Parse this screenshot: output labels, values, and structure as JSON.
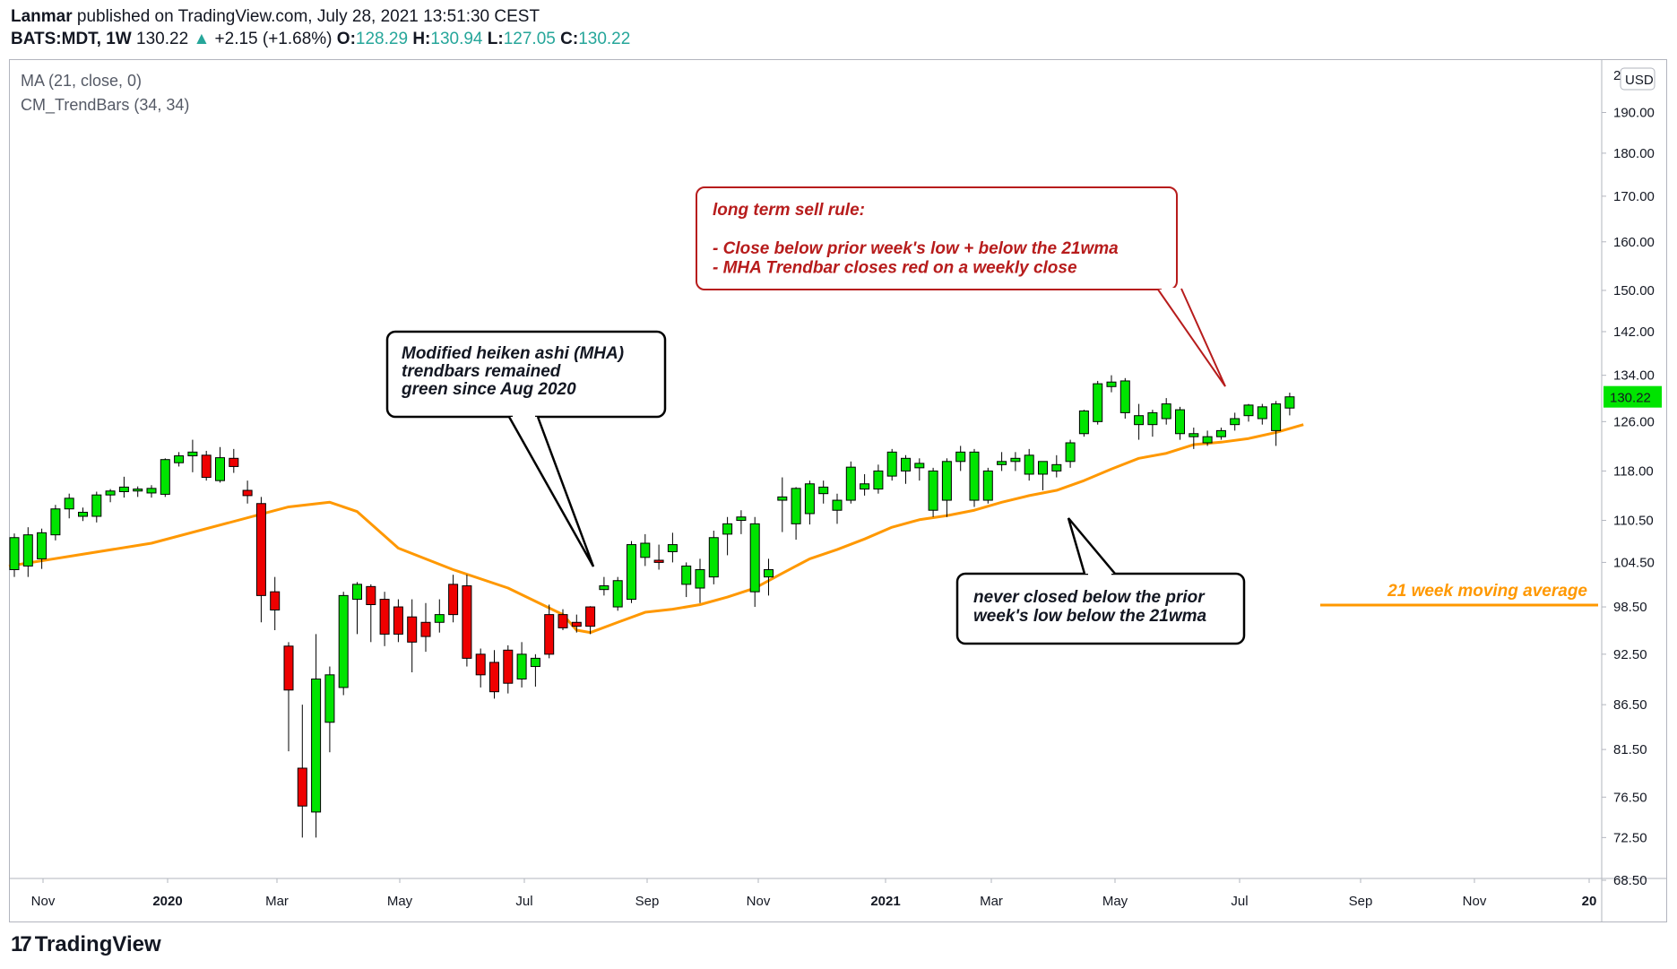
{
  "header": {
    "author": "Lanmar",
    "published": " published on TradingView.com, July 28, 2021 13:51:30 CEST",
    "symbol": "BATS:MDT, 1W",
    "last": "130.22",
    "change": "+2.15 (+1.68%)",
    "o_label": "O:",
    "o_val": "128.29",
    "h_label": "H:",
    "h_val": "130.94",
    "l_label": "L:",
    "l_val": "127.05",
    "c_label": "C:",
    "c_val": "130.22"
  },
  "legend": [
    "MA (21, close, 0)",
    "CM_TrendBars (34, 34)"
  ],
  "footer": {
    "brand": "TradingView",
    "mark": "17"
  },
  "colors": {
    "up": "#00e400",
    "down": "#ee0000",
    "ma": "#ff9800",
    "sell_text": "#b71c1c",
    "price_tag": "#00e400"
  },
  "chart_data": {
    "type": "candlestick",
    "symbol": "BATS:MDT",
    "interval": "1W",
    "currency": "USD",
    "price_axis": {
      "scale": "log",
      "ticks": [
        68.5,
        72.5,
        76.5,
        81.5,
        86.5,
        92.5,
        98.5,
        104.5,
        110.5,
        118.0,
        126.0,
        134.0,
        142.0,
        150.0,
        160.0,
        170.0,
        180.0,
        190.0
      ],
      "top_label": "2",
      "last_price": "130.22"
    },
    "time_axis": {
      "labels": [
        {
          "text": "Nov",
          "year": false
        },
        {
          "text": "2020",
          "year": true
        },
        {
          "text": "Mar",
          "year": false
        },
        {
          "text": "May",
          "year": false
        },
        {
          "text": "Jul",
          "year": false
        },
        {
          "text": "Sep",
          "year": false
        },
        {
          "text": "Nov",
          "year": false
        },
        {
          "text": "2021",
          "year": true
        },
        {
          "text": "Mar",
          "year": false
        },
        {
          "text": "May",
          "year": false
        },
        {
          "text": "Jul",
          "year": false
        },
        {
          "text": "Sep",
          "year": false
        },
        {
          "text": "Nov",
          "year": false
        },
        {
          "text": "20",
          "year": true
        }
      ]
    },
    "candles": [
      {
        "o": 103.5,
        "h": 108.6,
        "l": 102.5,
        "c": 108.0,
        "col": "up"
      },
      {
        "o": 104.0,
        "h": 109.5,
        "l": 102.5,
        "c": 108.4,
        "col": "up"
      },
      {
        "o": 105.0,
        "h": 109.3,
        "l": 103.6,
        "c": 108.7,
        "col": "up"
      },
      {
        "o": 108.4,
        "h": 112.8,
        "l": 107.6,
        "c": 112.2,
        "col": "up"
      },
      {
        "o": 112.2,
        "h": 114.5,
        "l": 110.8,
        "c": 113.8,
        "col": "up"
      },
      {
        "o": 111.1,
        "h": 112.4,
        "l": 110.4,
        "c": 111.7,
        "col": "up"
      },
      {
        "o": 111.1,
        "h": 114.8,
        "l": 110.2,
        "c": 114.3,
        "col": "up"
      },
      {
        "o": 114.3,
        "h": 115.2,
        "l": 113.2,
        "c": 114.9,
        "col": "up"
      },
      {
        "o": 114.8,
        "h": 117.1,
        "l": 113.9,
        "c": 115.5,
        "col": "up"
      },
      {
        "o": 114.9,
        "h": 115.6,
        "l": 114.0,
        "c": 115.2,
        "col": "up"
      },
      {
        "o": 114.6,
        "h": 115.8,
        "l": 113.9,
        "c": 115.3,
        "col": "up"
      },
      {
        "o": 114.4,
        "h": 120.0,
        "l": 114.0,
        "c": 119.8,
        "col": "up"
      },
      {
        "o": 119.3,
        "h": 121.0,
        "l": 118.7,
        "c": 120.4,
        "col": "up"
      },
      {
        "o": 120.4,
        "h": 123.0,
        "l": 117.8,
        "c": 121.0,
        "col": "up"
      },
      {
        "o": 120.5,
        "h": 121.2,
        "l": 116.5,
        "c": 117.0,
        "col": "down"
      },
      {
        "o": 116.5,
        "h": 121.8,
        "l": 116.2,
        "c": 120.1,
        "col": "up"
      },
      {
        "o": 120.0,
        "h": 121.5,
        "l": 117.7,
        "c": 118.7,
        "col": "down"
      },
      {
        "o": 115.0,
        "h": 116.5,
        "l": 113.0,
        "c": 114.2,
        "col": "down"
      },
      {
        "o": 113.0,
        "h": 114.0,
        "l": 96.5,
        "c": 100.0,
        "col": "down"
      },
      {
        "o": 100.5,
        "h": 102.5,
        "l": 95.5,
        "c": 98.1,
        "col": "down"
      },
      {
        "o": 93.5,
        "h": 94.0,
        "l": 81.3,
        "c": 88.2,
        "col": "down"
      },
      {
        "o": 79.5,
        "h": 86.5,
        "l": 72.5,
        "c": 75.6,
        "col": "down"
      },
      {
        "o": 75.0,
        "h": 95.0,
        "l": 72.5,
        "c": 89.5,
        "col": "up"
      },
      {
        "o": 84.5,
        "h": 91.0,
        "l": 81.2,
        "c": 90.0,
        "col": "up"
      },
      {
        "o": 88.5,
        "h": 100.5,
        "l": 87.6,
        "c": 100.0,
        "col": "up"
      },
      {
        "o": 99.5,
        "h": 101.8,
        "l": 95.0,
        "c": 101.5,
        "col": "up"
      },
      {
        "o": 101.2,
        "h": 101.5,
        "l": 94.0,
        "c": 98.8,
        "col": "down"
      },
      {
        "o": 99.5,
        "h": 100.5,
        "l": 93.5,
        "c": 95.0,
        "col": "down"
      },
      {
        "o": 98.5,
        "h": 99.5,
        "l": 94.0,
        "c": 95.0,
        "col": "down"
      },
      {
        "o": 97.2,
        "h": 99.5,
        "l": 90.3,
        "c": 94.0,
        "col": "down"
      },
      {
        "o": 96.5,
        "h": 99.0,
        "l": 92.8,
        "c": 94.7,
        "col": "down"
      },
      {
        "o": 97.5,
        "h": 99.5,
        "l": 95.2,
        "c": 96.5,
        "col": "up"
      },
      {
        "o": 101.5,
        "h": 102.8,
        "l": 96.5,
        "c": 97.5,
        "col": "down"
      },
      {
        "o": 101.3,
        "h": 102.8,
        "l": 91.0,
        "c": 92.0,
        "col": "down"
      },
      {
        "o": 92.5,
        "h": 93.2,
        "l": 88.5,
        "c": 90.0,
        "col": "down"
      },
      {
        "o": 91.5,
        "h": 93.0,
        "l": 87.2,
        "c": 88.0,
        "col": "down"
      },
      {
        "o": 93.0,
        "h": 93.6,
        "l": 87.8,
        "c": 89.0,
        "col": "down"
      },
      {
        "o": 92.5,
        "h": 94.0,
        "l": 88.5,
        "c": 89.5,
        "col": "up"
      },
      {
        "o": 91.0,
        "h": 92.5,
        "l": 88.6,
        "c": 92.0,
        "col": "up"
      },
      {
        "o": 97.5,
        "h": 98.8,
        "l": 92.0,
        "c": 92.5,
        "col": "down"
      },
      {
        "o": 97.5,
        "h": 98.2,
        "l": 95.5,
        "c": 95.8,
        "col": "down"
      },
      {
        "o": 96.5,
        "h": 97.5,
        "l": 95.2,
        "c": 96.0,
        "col": "down"
      },
      {
        "o": 98.5,
        "h": 98.6,
        "l": 95.0,
        "c": 96.0,
        "col": "down"
      },
      {
        "o": 100.8,
        "h": 102.5,
        "l": 100.0,
        "c": 101.3,
        "col": "up"
      },
      {
        "o": 98.5,
        "h": 102.5,
        "l": 98.0,
        "c": 102.0,
        "col": "up"
      },
      {
        "o": 99.5,
        "h": 107.5,
        "l": 99.0,
        "c": 107.0,
        "col": "up"
      },
      {
        "o": 105.2,
        "h": 108.5,
        "l": 104.0,
        "c": 107.2,
        "col": "up"
      },
      {
        "o": 104.5,
        "h": 107.0,
        "l": 103.5,
        "c": 104.8,
        "col": "down"
      },
      {
        "o": 106.0,
        "h": 108.7,
        "l": 104.5,
        "c": 107.0,
        "col": "up"
      },
      {
        "o": 101.5,
        "h": 104.5,
        "l": 99.8,
        "c": 104.0,
        "col": "up"
      },
      {
        "o": 101.0,
        "h": 105.0,
        "l": 99.0,
        "c": 103.5,
        "col": "up"
      },
      {
        "o": 102.5,
        "h": 109.0,
        "l": 101.5,
        "c": 108.0,
        "col": "up"
      },
      {
        "o": 108.5,
        "h": 111.0,
        "l": 105.5,
        "c": 110.0,
        "col": "up"
      },
      {
        "o": 110.5,
        "h": 112.0,
        "l": 108.5,
        "c": 111.0,
        "col": "up"
      },
      {
        "o": 100.5,
        "h": 111.0,
        "l": 98.5,
        "c": 110.0,
        "col": "up"
      },
      {
        "o": 102.5,
        "h": 105.0,
        "l": 100.0,
        "c": 103.5,
        "col": "up"
      },
      {
        "o": 113.5,
        "h": 117.0,
        "l": 108.8,
        "c": 114.0,
        "col": "up"
      },
      {
        "o": 110.0,
        "h": 115.5,
        "l": 107.7,
        "c": 115.3,
        "col": "up"
      },
      {
        "o": 111.5,
        "h": 116.5,
        "l": 109.9,
        "c": 116.0,
        "col": "up"
      },
      {
        "o": 114.5,
        "h": 116.5,
        "l": 113.0,
        "c": 115.5,
        "col": "up"
      },
      {
        "o": 112.0,
        "h": 114.5,
        "l": 110.0,
        "c": 113.5,
        "col": "up"
      },
      {
        "o": 113.5,
        "h": 119.5,
        "l": 113.0,
        "c": 118.6,
        "col": "up"
      },
      {
        "o": 115.2,
        "h": 117.5,
        "l": 114.2,
        "c": 116.0,
        "col": "up"
      },
      {
        "o": 115.2,
        "h": 119.0,
        "l": 114.5,
        "c": 118.0,
        "col": "up"
      },
      {
        "o": 117.2,
        "h": 121.5,
        "l": 116.5,
        "c": 121.0,
        "col": "up"
      },
      {
        "o": 118.0,
        "h": 120.5,
        "l": 116.0,
        "c": 120.0,
        "col": "up"
      },
      {
        "o": 118.5,
        "h": 120.0,
        "l": 116.5,
        "c": 119.2,
        "col": "up"
      },
      {
        "o": 112.0,
        "h": 118.5,
        "l": 111.0,
        "c": 118.0,
        "col": "up"
      },
      {
        "o": 113.5,
        "h": 120.0,
        "l": 111.0,
        "c": 119.5,
        "col": "up"
      },
      {
        "o": 119.5,
        "h": 122.0,
        "l": 118.0,
        "c": 121.0,
        "col": "up"
      },
      {
        "o": 113.5,
        "h": 121.5,
        "l": 112.5,
        "c": 121.0,
        "col": "up"
      },
      {
        "o": 113.5,
        "h": 118.5,
        "l": 113.0,
        "c": 118.0,
        "col": "up"
      },
      {
        "o": 119.0,
        "h": 121.0,
        "l": 118.0,
        "c": 119.5,
        "col": "up"
      },
      {
        "o": 119.5,
        "h": 121.0,
        "l": 118.0,
        "c": 120.0,
        "col": "up"
      },
      {
        "o": 117.5,
        "h": 121.5,
        "l": 116.5,
        "c": 120.5,
        "col": "up"
      },
      {
        "o": 117.5,
        "h": 119.5,
        "l": 115.0,
        "c": 119.5,
        "col": "up"
      },
      {
        "o": 118.0,
        "h": 120.5,
        "l": 117.0,
        "c": 119.0,
        "col": "up"
      },
      {
        "o": 119.5,
        "h": 123.0,
        "l": 118.5,
        "c": 122.5,
        "col": "up"
      },
      {
        "o": 124.0,
        "h": 128.0,
        "l": 123.5,
        "c": 127.8,
        "col": "up"
      },
      {
        "o": 126.0,
        "h": 133.0,
        "l": 125.5,
        "c": 132.5,
        "col": "up"
      },
      {
        "o": 132.0,
        "h": 134.0,
        "l": 131.0,
        "c": 132.8,
        "col": "up"
      },
      {
        "o": 127.5,
        "h": 133.5,
        "l": 126.5,
        "c": 133.0,
        "col": "up"
      },
      {
        "o": 125.5,
        "h": 129.0,
        "l": 123.0,
        "c": 127.0,
        "col": "up"
      },
      {
        "o": 125.5,
        "h": 128.0,
        "l": 123.5,
        "c": 127.5,
        "col": "up"
      },
      {
        "o": 126.5,
        "h": 130.0,
        "l": 125.5,
        "c": 129.0,
        "col": "up"
      },
      {
        "o": 124.0,
        "h": 128.5,
        "l": 123.0,
        "c": 128.0,
        "col": "up"
      },
      {
        "o": 123.5,
        "h": 125.0,
        "l": 121.5,
        "c": 124.0,
        "col": "up"
      },
      {
        "o": 122.5,
        "h": 124.5,
        "l": 122.0,
        "c": 123.5,
        "col": "up"
      },
      {
        "o": 123.5,
        "h": 125.0,
        "l": 123.0,
        "c": 124.5,
        "col": "up"
      },
      {
        "o": 125.5,
        "h": 127.5,
        "l": 124.5,
        "c": 126.5,
        "col": "up"
      },
      {
        "o": 127.0,
        "h": 129.0,
        "l": 126.0,
        "c": 128.8,
        "col": "up"
      },
      {
        "o": 126.5,
        "h": 129.0,
        "l": 125.5,
        "c": 128.5,
        "col": "up"
      },
      {
        "o": 124.5,
        "h": 129.5,
        "l": 122.0,
        "c": 129.0,
        "col": "up"
      },
      {
        "o": 128.29,
        "h": 130.94,
        "l": 127.05,
        "c": 130.22,
        "col": "up"
      }
    ],
    "ma": {
      "name": "MA (21, close, 0)",
      "points": [
        [
          0,
          104.0
        ],
        [
          10,
          107.2
        ],
        [
          20,
          112.5
        ],
        [
          23,
          113.2
        ],
        [
          25,
          111.8
        ],
        [
          28,
          106.5
        ],
        [
          32,
          103.5
        ],
        [
          36,
          101.0
        ],
        [
          40,
          97.5
        ],
        [
          41,
          95.5
        ],
        [
          42,
          95.2
        ],
        [
          44,
          96.5
        ],
        [
          46,
          97.8
        ],
        [
          48,
          98.2
        ],
        [
          50,
          98.8
        ],
        [
          52,
          99.8
        ],
        [
          54,
          101.0
        ],
        [
          56,
          103.0
        ],
        [
          58,
          105.0
        ],
        [
          60,
          106.3
        ],
        [
          62,
          107.8
        ],
        [
          64,
          109.5
        ],
        [
          66,
          110.6
        ],
        [
          68,
          111.2
        ],
        [
          70,
          112.0
        ],
        [
          72,
          113.2
        ],
        [
          74,
          114.2
        ],
        [
          76,
          115.0
        ],
        [
          78,
          116.5
        ],
        [
          80,
          118.3
        ],
        [
          82,
          120.0
        ],
        [
          84,
          120.8
        ],
        [
          86,
          122.2
        ],
        [
          88,
          122.6
        ],
        [
          90,
          123.2
        ],
        [
          92,
          124.2
        ],
        [
          94,
          125.5
        ]
      ]
    },
    "annotations": [
      {
        "id": "sell-rule",
        "lines": [
          "long term sell rule:",
          "",
          "- Close below prior week's low + below the 21wma",
          "- MHA Trendbar closes red on a weekly close"
        ]
      },
      {
        "id": "mha-note",
        "lines": [
          "Modified heiken ashi (MHA)",
          "trendbars remained",
          "green since Aug 2020"
        ]
      },
      {
        "id": "never-closed",
        "lines": [
          "never closed below the prior",
          "week's low below the 21wma"
        ]
      },
      {
        "id": "ma-label",
        "lines": [
          "21 week moving average"
        ]
      }
    ]
  }
}
